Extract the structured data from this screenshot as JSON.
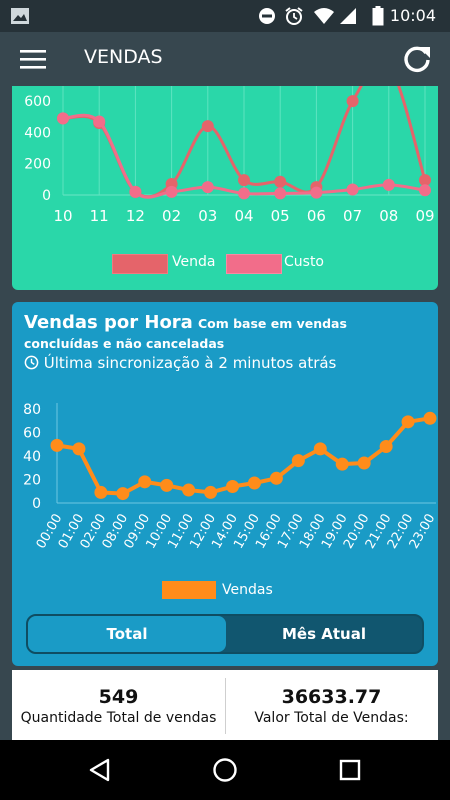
{
  "status_bar": {
    "time": "10:04"
  },
  "app_bar": {
    "title": "VENDAS"
  },
  "chart_data": [
    {
      "type": "line",
      "x": [
        "10",
        "11",
        "12",
        "02",
        "03",
        "04",
        "05",
        "06",
        "07",
        "08",
        "09"
      ],
      "series": [
        {
          "name": "Venda",
          "values": [
            490,
            460,
            20,
            70,
            440,
            95,
            85,
            50,
            600,
            830,
            95
          ]
        },
        {
          "name": "Custo",
          "values": [
            490,
            470,
            20,
            20,
            50,
            10,
            10,
            15,
            35,
            65,
            30
          ]
        }
      ],
      "ylim": [
        0,
        780
      ],
      "yticks": [
        0,
        200,
        400,
        600
      ],
      "colors": {
        "Venda": "#e5646a",
        "Custo": "#f26d8a"
      }
    },
    {
      "type": "line",
      "title": "Vendas por Hora",
      "subtitle": "Com base em vendas concluídas e não canceladas",
      "x": [
        "00:00",
        "01:00",
        "02:00",
        "08:00",
        "09:00",
        "10:00",
        "11:00",
        "12:00",
        "14:00",
        "15:00",
        "16:00",
        "17:00",
        "18:00",
        "19:00",
        "20:00",
        "21:00",
        "22:00",
        "23:00"
      ],
      "series": [
        {
          "name": "Vendas",
          "values": [
            49,
            46,
            9,
            8,
            18,
            15,
            11,
            9,
            14,
            17,
            21,
            36,
            46,
            33,
            34,
            48,
            69,
            72
          ]
        }
      ],
      "ylim": [
        0,
        85
      ],
      "yticks": [
        0,
        20,
        40,
        60,
        80
      ],
      "colors": {
        "Vendas": "#ff8c1a"
      }
    }
  ],
  "legend1": {
    "venda": "Venda",
    "custo": "Custo"
  },
  "legend2": {
    "vendas": "Vendas"
  },
  "card2": {
    "title": "Vendas por Hora",
    "subtitle": "Com base em vendas concluídas e não canceladas",
    "sync": "Última sincronização à 2 minutos atrás"
  },
  "segment": {
    "total": "Total",
    "mes_atual": "Mês Atual"
  },
  "stats": {
    "quantity_value": "549",
    "quantity_label": "Quantidade Total de vendas",
    "value_value": "36633.77",
    "value_label": "Valor Total de Vendas:"
  }
}
